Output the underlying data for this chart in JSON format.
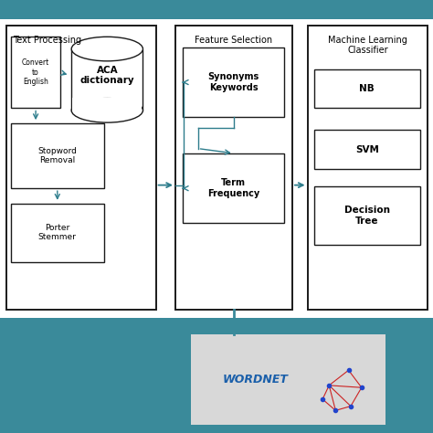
{
  "bg_color": "#ffffff",
  "teal_color": "#3a8a9a",
  "box_edge": "#1a1a1a",
  "arrow_color": "#2e7d8c",
  "wordnet_text_color": "#1a5faa",
  "wordnet_bg": "#d8d8d8",
  "wordnet_net_color": "#cc2222",
  "wordnet_node_color": "#2244cc",
  "text_processing_label": "Text Processing",
  "convert_label": "Convert\nto\nEnglish",
  "aca_label": "ACA\ndictionary",
  "stopword_label": "Stopword\nRemoval",
  "porter_label": "Porter\nStemmer",
  "feature_selection_label": "Feature Selection",
  "synonyms_label": "Synonyms\nKeywords",
  "term_freq_label": "Term\nFrequency",
  "ml_label": "Machine Learning\nClassifier",
  "nb_label": "NB",
  "svm_label": "SVM",
  "dt_label": "Decision\nTree",
  "wordnet_label": "WORDNET"
}
